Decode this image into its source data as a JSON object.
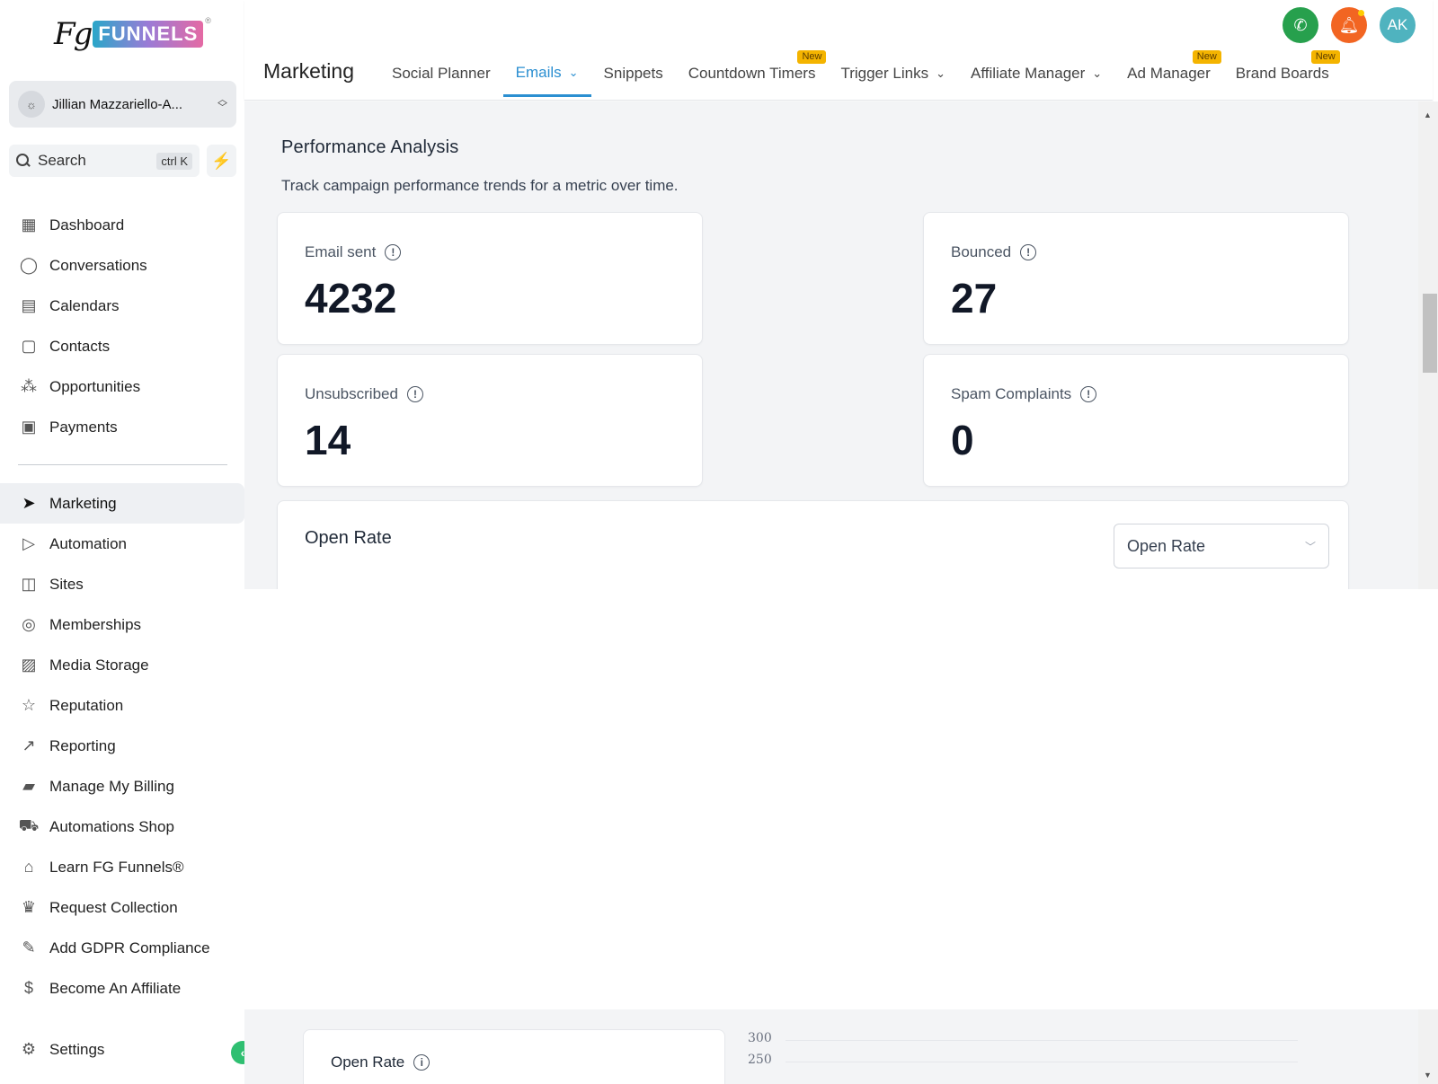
{
  "brand": {
    "logo_fg": "Fg",
    "logo_funnels": "FUNNELS",
    "logo_reg": "®"
  },
  "account": {
    "name": "Jillian Mazzariello-A..."
  },
  "search": {
    "label": "Search",
    "shortcut": "ctrl K"
  },
  "sidebar": {
    "items": [
      {
        "label": "Dashboard",
        "icon": "dashboard-icon"
      },
      {
        "label": "Conversations",
        "icon": "chat-icon"
      },
      {
        "label": "Calendars",
        "icon": "calendar-icon"
      },
      {
        "label": "Contacts",
        "icon": "contacts-icon"
      },
      {
        "label": "Opportunities",
        "icon": "opportunities-icon"
      },
      {
        "label": "Payments",
        "icon": "payments-icon"
      }
    ],
    "items2": [
      {
        "label": "Marketing",
        "icon": "send-icon",
        "active": true
      },
      {
        "label": "Automation",
        "icon": "automation-icon"
      },
      {
        "label": "Sites",
        "icon": "sites-icon"
      },
      {
        "label": "Memberships",
        "icon": "membership-icon"
      },
      {
        "label": "Media Storage",
        "icon": "image-icon"
      },
      {
        "label": "Reputation",
        "icon": "star-icon"
      },
      {
        "label": "Reporting",
        "icon": "trend-icon"
      },
      {
        "label": "Manage My Billing",
        "icon": "billing-icon"
      },
      {
        "label": "Automations Shop",
        "icon": "cart-icon"
      },
      {
        "label": "Learn FG Funnels®",
        "icon": "graduation-icon"
      },
      {
        "label": "Request Collection",
        "icon": "trophy-icon"
      },
      {
        "label": "Add GDPR Compliance",
        "icon": "edit-icon"
      },
      {
        "label": "Become An Affiliate",
        "icon": "dollar-icon"
      }
    ],
    "settings": "Settings"
  },
  "header": {
    "title": "Marketing",
    "tabs": [
      {
        "label": "Social Planner"
      },
      {
        "label": "Emails",
        "active": true,
        "dropdown": true
      },
      {
        "label": "Snippets"
      },
      {
        "label": "Countdown Timers",
        "badge": "New"
      },
      {
        "label": "Trigger Links",
        "dropdown": true
      },
      {
        "label": "Affiliate Manager",
        "dropdown": true
      },
      {
        "label": "Ad Manager",
        "badge": "New"
      },
      {
        "label": "Brand Boards",
        "badge": "New"
      }
    ],
    "user_initials": "AK"
  },
  "main": {
    "section_title": "Performance Analysis",
    "section_sub": "Track campaign performance trends for a metric over time.",
    "metrics": [
      {
        "label": "Email sent",
        "value": "4232"
      },
      {
        "label": "Bounced",
        "value": "27"
      },
      {
        "label": "Unsubscribed",
        "value": "14"
      },
      {
        "label": "Spam Complaints",
        "value": "0"
      }
    ],
    "open_rate_title": "Open Rate",
    "open_rate_select": "Open Rate",
    "mini_card_title": "Open Rate",
    "chart_ticks": [
      "300",
      "250"
    ]
  },
  "colors": {
    "accent": "#2b8fd1",
    "brand_green": "#2fbf71",
    "badge": "#f4b400"
  }
}
